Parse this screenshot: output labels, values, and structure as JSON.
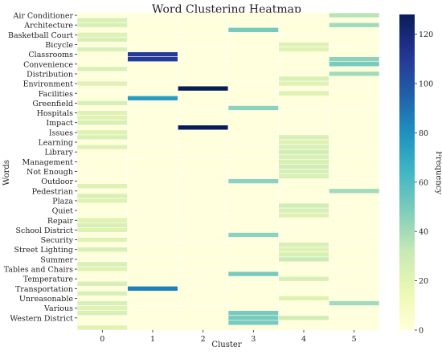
{
  "chart_data": {
    "type": "heatmap",
    "title": "Word Clustering Heatmap",
    "xlabel": "Cluster",
    "ylabel": "Words",
    "colorbar_label": "Frequency",
    "colormap": "YlGnBu",
    "color_range": [
      0,
      128
    ],
    "colorbar_ticks": [
      0,
      20,
      40,
      60,
      80,
      100,
      120
    ],
    "x_categories": [
      "0",
      "1",
      "2",
      "3",
      "4",
      "5"
    ],
    "y_tick_labels": [
      "Air Conditioner",
      "Architecture",
      "Basketball Court",
      "Bicycle",
      "Classrooms",
      "Convenience",
      "Distribution",
      "Environment",
      "Facilities",
      "Greenfield",
      "Hospitals",
      "Impact",
      "Issues",
      "Learning",
      "Library",
      "Management",
      "Not Enough",
      "Outdoor",
      "Pedestrian",
      "Plaza",
      "Quiet",
      "Repair",
      "School District",
      "Security",
      "Street Lighting",
      "Summer",
      "Tables and Chairs",
      "Temperature",
      "Transportation",
      "Unreasonable",
      "Various",
      "Western District"
    ],
    "row_count": 65,
    "row_label_step": 2,
    "row_separators": true,
    "cells": [
      {
        "row": 0,
        "col": 5,
        "value": 35
      },
      {
        "row": 1,
        "col": 0,
        "value": 25
      },
      {
        "row": 2,
        "col": 0,
        "value": 25
      },
      {
        "row": 2,
        "col": 5,
        "value": 40
      },
      {
        "row": 3,
        "col": 3,
        "value": 50
      },
      {
        "row": 4,
        "col": 0,
        "value": 22
      },
      {
        "row": 5,
        "col": 0,
        "value": 25
      },
      {
        "row": 6,
        "col": 4,
        "value": 22
      },
      {
        "row": 7,
        "col": 0,
        "value": 25
      },
      {
        "row": 7,
        "col": 4,
        "value": 22
      },
      {
        "row": 8,
        "col": 1,
        "value": 110
      },
      {
        "row": 9,
        "col": 1,
        "value": 110
      },
      {
        "row": 9,
        "col": 5,
        "value": 45
      },
      {
        "row": 10,
        "col": 5,
        "value": 50
      },
      {
        "row": 11,
        "col": 0,
        "value": 25
      },
      {
        "row": 12,
        "col": 5,
        "value": 40
      },
      {
        "row": 13,
        "col": 4,
        "value": 25
      },
      {
        "row": 14,
        "col": 4,
        "value": 22
      },
      {
        "row": 14,
        "col": 0,
        "value": 22
      },
      {
        "row": 15,
        "col": 2,
        "value": 128
      },
      {
        "row": 16,
        "col": 4,
        "value": 22
      },
      {
        "row": 17,
        "col": 1,
        "value": 75
      },
      {
        "row": 18,
        "col": 0,
        "value": 25
      },
      {
        "row": 19,
        "col": 3,
        "value": 45
      },
      {
        "row": 20,
        "col": 0,
        "value": 22
      },
      {
        "row": 21,
        "col": 0,
        "value": 22
      },
      {
        "row": 22,
        "col": 0,
        "value": 25
      },
      {
        "row": 23,
        "col": 2,
        "value": 128
      },
      {
        "row": 24,
        "col": 0,
        "value": 22
      },
      {
        "row": 25,
        "col": 0,
        "value": 25
      },
      {
        "row": 25,
        "col": 4,
        "value": 25
      },
      {
        "row": 26,
        "col": 4,
        "value": 22
      },
      {
        "row": 27,
        "col": 0,
        "value": 22
      },
      {
        "row": 27,
        "col": 4,
        "value": 25
      },
      {
        "row": 28,
        "col": 4,
        "value": 28
      },
      {
        "row": 29,
        "col": 4,
        "value": 25
      },
      {
        "row": 30,
        "col": 4,
        "value": 25
      },
      {
        "row": 31,
        "col": 4,
        "value": 28
      },
      {
        "row": 32,
        "col": 4,
        "value": 25
      },
      {
        "row": 33,
        "col": 4,
        "value": 25
      },
      {
        "row": 34,
        "col": 3,
        "value": 45
      },
      {
        "row": 35,
        "col": 0,
        "value": 22
      },
      {
        "row": 36,
        "col": 5,
        "value": 40
      },
      {
        "row": 37,
        "col": 0,
        "value": 25
      },
      {
        "row": 38,
        "col": 0,
        "value": 22
      },
      {
        "row": 39,
        "col": 4,
        "value": 28
      },
      {
        "row": 40,
        "col": 4,
        "value": 25
      },
      {
        "row": 41,
        "col": 4,
        "value": 22
      },
      {
        "row": 42,
        "col": 0,
        "value": 22
      },
      {
        "row": 43,
        "col": 0,
        "value": 25
      },
      {
        "row": 44,
        "col": 0,
        "value": 22
      },
      {
        "row": 45,
        "col": 3,
        "value": 45
      },
      {
        "row": 46,
        "col": 0,
        "value": 22
      },
      {
        "row": 47,
        "col": 4,
        "value": 25
      },
      {
        "row": 48,
        "col": 4,
        "value": 22
      },
      {
        "row": 48,
        "col": 0,
        "value": 25
      },
      {
        "row": 49,
        "col": 4,
        "value": 25
      },
      {
        "row": 50,
        "col": 4,
        "value": 30
      },
      {
        "row": 51,
        "col": 0,
        "value": 25
      },
      {
        "row": 52,
        "col": 0,
        "value": 22
      },
      {
        "row": 53,
        "col": 3,
        "value": 50
      },
      {
        "row": 54,
        "col": 4,
        "value": 25
      },
      {
        "row": 55,
        "col": 0,
        "value": 25
      },
      {
        "row": 56,
        "col": 1,
        "value": 85
      },
      {
        "row": 57,
        "col": 0,
        "value": 25
      },
      {
        "row": 58,
        "col": 4,
        "value": 22
      },
      {
        "row": 59,
        "col": 0,
        "value": 25
      },
      {
        "row": 59,
        "col": 5,
        "value": 40
      },
      {
        "row": 61,
        "col": 3,
        "value": 50
      },
      {
        "row": 62,
        "col": 3,
        "value": 50
      },
      {
        "row": 62,
        "col": 4,
        "value": 28
      },
      {
        "row": 63,
        "col": 3,
        "value": 50
      },
      {
        "row": 64,
        "col": 0,
        "value": 22
      }
    ],
    "extra_cells": [
      {
        "row": 60,
        "col": 0,
        "value": 22
      },
      {
        "row": 61,
        "col": 0,
        "value": 25
      }
    ]
  }
}
